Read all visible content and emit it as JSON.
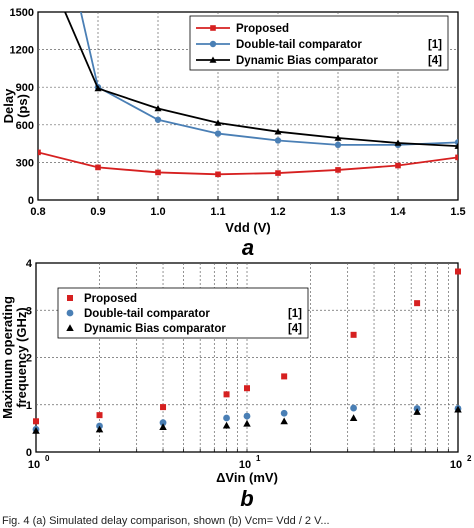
{
  "chart_data": [
    {
      "type": "line",
      "panel_label": "a",
      "xlabel": "Vdd (V)",
      "ylabel": "Delay (ps)",
      "xlim": [
        0.8,
        1.5
      ],
      "ylim": [
        0,
        1500
      ],
      "x_ticks": [
        "0.8",
        "0.9",
        "1.0",
        "1.1",
        "1.2",
        "1.3",
        "1.4",
        "1.5"
      ],
      "y_ticks": [
        "0",
        "300",
        "600",
        "900",
        "1200",
        "1500"
      ],
      "grid": "dashed vertical and horizontal",
      "legend_position": "top-right",
      "series": [
        {
          "name": "Proposed",
          "ref": "",
          "color": "#d62020",
          "marker": "square",
          "x": [
            0.8,
            0.9,
            1.0,
            1.1,
            1.2,
            1.3,
            1.4,
            1.5
          ],
          "y": [
            380,
            260,
            220,
            205,
            215,
            240,
            275,
            340
          ]
        },
        {
          "name": "Double-tail comparator",
          "ref": "[1]",
          "color": "#4a7fb5",
          "marker": "circle",
          "x": [
            0.8,
            0.9,
            1.0,
            1.1,
            1.2,
            1.3,
            1.4,
            1.5
          ],
          "y": [
            3000,
            900,
            640,
            530,
            475,
            440,
            440,
            460
          ]
        },
        {
          "name": "Dynamic Bias comparator",
          "ref": "[4]",
          "color": "#000000",
          "marker": "triangle",
          "x": [
            0.8,
            0.9,
            1.0,
            1.1,
            1.2,
            1.3,
            1.4,
            1.5
          ],
          "y": [
            2000,
            890,
            730,
            615,
            545,
            495,
            455,
            430
          ]
        }
      ]
    },
    {
      "type": "scatter",
      "panel_label": "b",
      "xlabel": "ΔVin (mV)",
      "ylabel": "Maximum operating frequency (GHz)",
      "ylabel_lines": [
        "Maximum operating",
        "frequency (GHz)"
      ],
      "x_scale": "log",
      "xlim": [
        1,
        100
      ],
      "ylim": [
        0,
        4
      ],
      "x_ticks": [
        "10",
        "10",
        "10"
      ],
      "x_tick_exponents": [
        "0",
        "1",
        "2"
      ],
      "y_ticks": [
        "0",
        "1",
        "2",
        "3",
        "4"
      ],
      "grid": "dashed vertical and horizontal",
      "legend_position": "top-left",
      "series": [
        {
          "name": "Proposed",
          "ref": "",
          "color": "#d62020",
          "marker": "square",
          "x": [
            1,
            2,
            4,
            8,
            10,
            15,
            32,
            64,
            100
          ],
          "y": [
            0.65,
            0.78,
            0.95,
            1.22,
            1.35,
            1.6,
            2.48,
            3.15,
            3.82
          ]
        },
        {
          "name": "Double-tail comparator",
          "ref": "[1]",
          "color": "#4a7fb5",
          "marker": "circle",
          "x": [
            1,
            2,
            4,
            8,
            10,
            15,
            32,
            64,
            100
          ],
          "y": [
            0.48,
            0.55,
            0.62,
            0.72,
            0.76,
            0.82,
            0.93,
            0.92,
            0.92
          ]
        },
        {
          "name": "Dynamic Bias comparator",
          "ref": "[4]",
          "color": "#000000",
          "marker": "triangle",
          "x": [
            1,
            2,
            4,
            8,
            10,
            15,
            32,
            64,
            100
          ],
          "y": [
            0.45,
            0.48,
            0.53,
            0.56,
            0.6,
            0.65,
            0.72,
            0.85,
            0.9
          ]
        }
      ]
    }
  ],
  "caption_fragment": "Fig. 4 (a) Simulated delay comparison, shown (b) Vcm= Vdd / 2 V..."
}
